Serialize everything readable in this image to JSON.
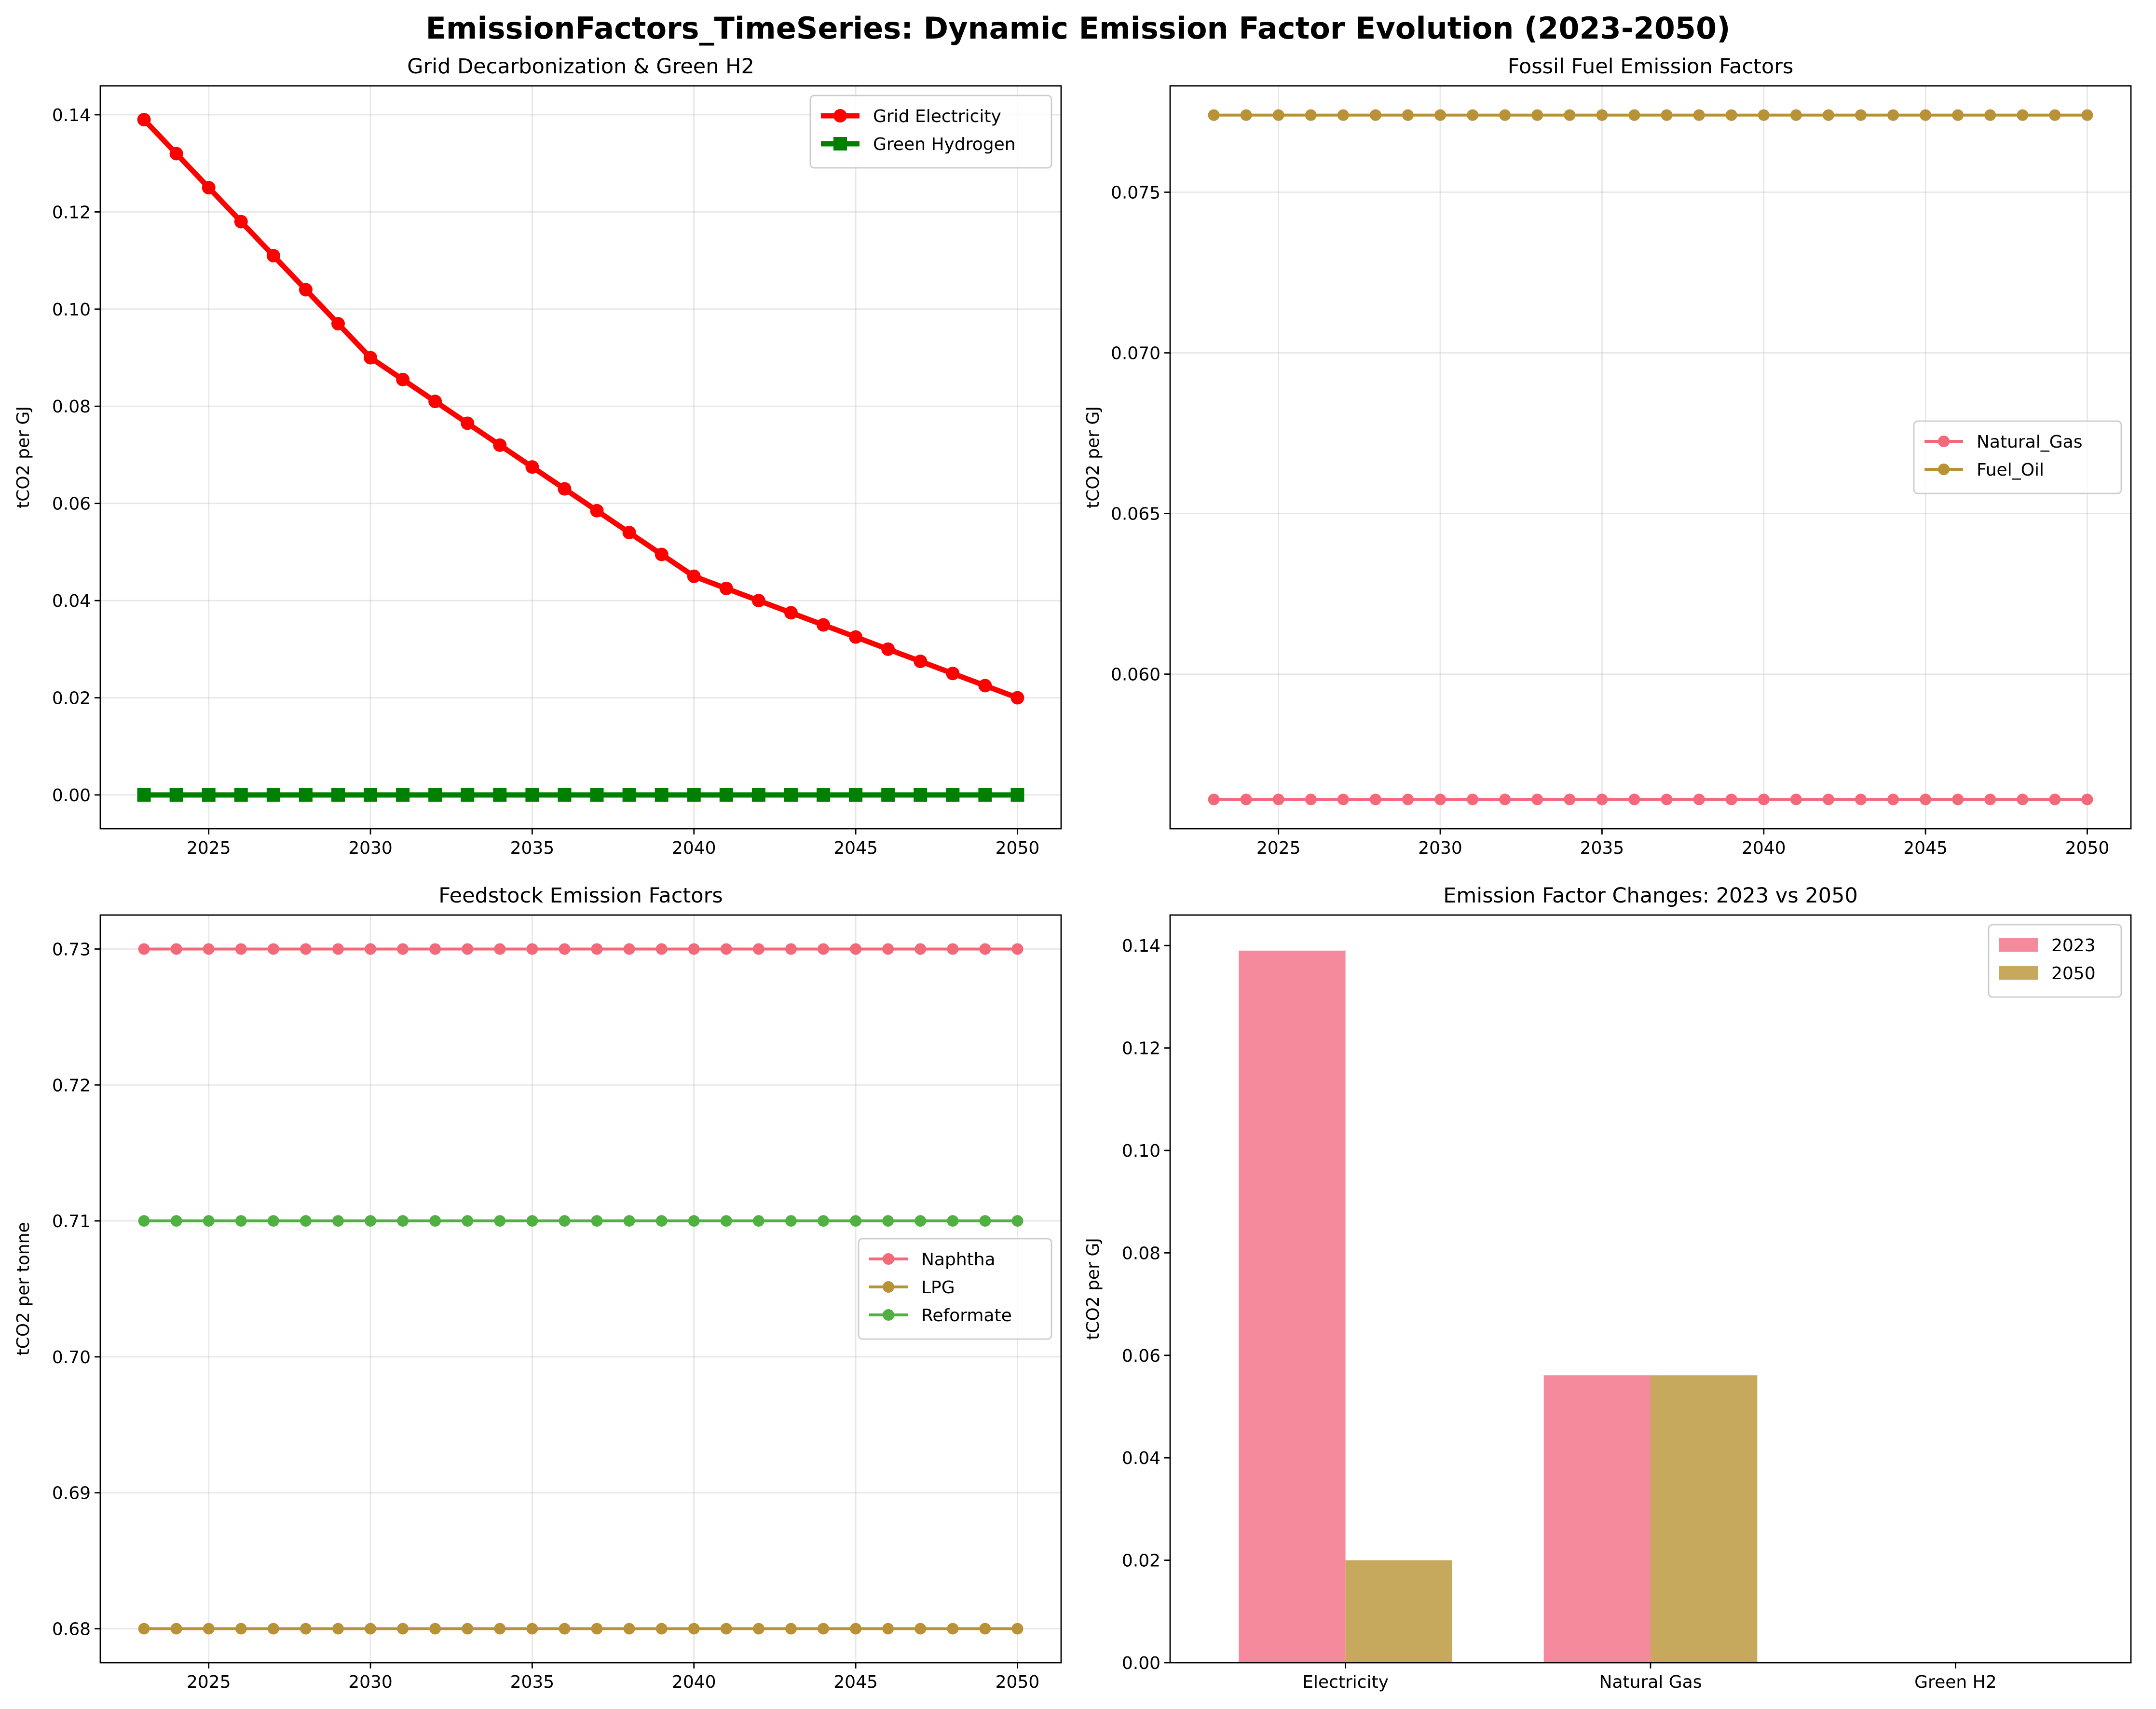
{
  "figure": {
    "title": "EmissionFactors_TimeSeries: Dynamic Emission Factor Evolution (2023-2050)"
  },
  "chart_data": [
    {
      "type": "line",
      "title": "Grid Decarbonization & Green H2",
      "xlabel": "",
      "ylabel": "tCO2 per GJ",
      "x": [
        2023,
        2024,
        2025,
        2026,
        2027,
        2028,
        2029,
        2030,
        2031,
        2032,
        2033,
        2034,
        2035,
        2036,
        2037,
        2038,
        2039,
        2040,
        2041,
        2042,
        2043,
        2044,
        2045,
        2046,
        2047,
        2048,
        2049,
        2050
      ],
      "xlim": [
        2021.65,
        2051.35
      ],
      "ylim": [
        -0.00695,
        0.14595
      ],
      "xticks": [
        2025,
        2030,
        2035,
        2040,
        2045,
        2050
      ],
      "yticks": [
        0.0,
        0.02,
        0.04,
        0.06,
        0.08,
        0.1,
        0.12,
        0.14
      ],
      "ytick_decimals": 2,
      "grid": true,
      "legend": "top-right",
      "series": [
        {
          "name": "Grid Electricity",
          "color": "#ff0000",
          "marker": "circle",
          "linewidth": "thick",
          "values": [
            0.139,
            0.132,
            0.125,
            0.118,
            0.111,
            0.104,
            0.097,
            0.09,
            0.0855,
            0.081,
            0.0765,
            0.072,
            0.0675,
            0.063,
            0.0585,
            0.054,
            0.0495,
            0.045,
            0.0425,
            0.04,
            0.0375,
            0.035,
            0.0325,
            0.03,
            0.0275,
            0.025,
            0.0225,
            0.02
          ]
        },
        {
          "name": "Green Hydrogen",
          "color": "#008000",
          "marker": "square",
          "linewidth": "thick",
          "values": [
            0,
            0,
            0,
            0,
            0,
            0,
            0,
            0,
            0,
            0,
            0,
            0,
            0,
            0,
            0,
            0,
            0,
            0,
            0,
            0,
            0,
            0,
            0,
            0,
            0,
            0,
            0,
            0
          ]
        }
      ]
    },
    {
      "type": "line",
      "title": "Fossil Fuel Emission Factors",
      "xlabel": "",
      "ylabel": "tCO2 per GJ",
      "x": [
        2023,
        2024,
        2025,
        2026,
        2027,
        2028,
        2029,
        2030,
        2031,
        2032,
        2033,
        2034,
        2035,
        2036,
        2037,
        2038,
        2039,
        2040,
        2041,
        2042,
        2043,
        2044,
        2045,
        2046,
        2047,
        2048,
        2049,
        2050
      ],
      "xlim": [
        2021.65,
        2051.35
      ],
      "ylim": [
        0.05519,
        0.07831
      ],
      "xticks": [
        2025,
        2030,
        2035,
        2040,
        2045,
        2050
      ],
      "yticks": [
        0.06,
        0.065,
        0.07,
        0.075
      ],
      "ytick_decimals": 3,
      "grid": true,
      "legend": "center-right",
      "series": [
        {
          "name": "Natural_Gas",
          "color": "#f2697a",
          "marker": "circle",
          "linewidth": "normal",
          "values": [
            0.0561,
            0.0561,
            0.0561,
            0.0561,
            0.0561,
            0.0561,
            0.0561,
            0.0561,
            0.0561,
            0.0561,
            0.0561,
            0.0561,
            0.0561,
            0.0561,
            0.0561,
            0.0561,
            0.0561,
            0.0561,
            0.0561,
            0.0561,
            0.0561,
            0.0561,
            0.0561,
            0.0561,
            0.0561,
            0.0561,
            0.0561,
            0.0561
          ]
        },
        {
          "name": "Fuel_Oil",
          "color": "#b99237",
          "marker": "circle",
          "linewidth": "normal",
          "values": [
            0.0774,
            0.0774,
            0.0774,
            0.0774,
            0.0774,
            0.0774,
            0.0774,
            0.0774,
            0.0774,
            0.0774,
            0.0774,
            0.0774,
            0.0774,
            0.0774,
            0.0774,
            0.0774,
            0.0774,
            0.0774,
            0.0774,
            0.0774,
            0.0774,
            0.0774,
            0.0774,
            0.0774,
            0.0774,
            0.0774,
            0.0774,
            0.0774
          ]
        }
      ]
    },
    {
      "type": "line",
      "title": "Feedstock Emission Factors",
      "xlabel": "",
      "ylabel": "tCO2 per tonne",
      "x": [
        2023,
        2024,
        2025,
        2026,
        2027,
        2028,
        2029,
        2030,
        2031,
        2032,
        2033,
        2034,
        2035,
        2036,
        2037,
        2038,
        2039,
        2040,
        2041,
        2042,
        2043,
        2044,
        2045,
        2046,
        2047,
        2048,
        2049,
        2050
      ],
      "xlim": [
        2021.65,
        2051.35
      ],
      "ylim": [
        0.6775,
        0.7325
      ],
      "xticks": [
        2025,
        2030,
        2035,
        2040,
        2045,
        2050
      ],
      "yticks": [
        0.68,
        0.69,
        0.7,
        0.71,
        0.72,
        0.73
      ],
      "ytick_decimals": 2,
      "grid": true,
      "legend": "center-right",
      "series": [
        {
          "name": "Naphtha",
          "color": "#f2697a",
          "marker": "circle",
          "linewidth": "normal",
          "values": [
            0.73,
            0.73,
            0.73,
            0.73,
            0.73,
            0.73,
            0.73,
            0.73,
            0.73,
            0.73,
            0.73,
            0.73,
            0.73,
            0.73,
            0.73,
            0.73,
            0.73,
            0.73,
            0.73,
            0.73,
            0.73,
            0.73,
            0.73,
            0.73,
            0.73,
            0.73,
            0.73,
            0.73
          ]
        },
        {
          "name": "LPG",
          "color": "#b99237",
          "marker": "circle",
          "linewidth": "normal",
          "values": [
            0.68,
            0.68,
            0.68,
            0.68,
            0.68,
            0.68,
            0.68,
            0.68,
            0.68,
            0.68,
            0.68,
            0.68,
            0.68,
            0.68,
            0.68,
            0.68,
            0.68,
            0.68,
            0.68,
            0.68,
            0.68,
            0.68,
            0.68,
            0.68,
            0.68,
            0.68,
            0.68,
            0.68
          ]
        },
        {
          "name": "Reformate",
          "color": "#50b041",
          "marker": "circle",
          "linewidth": "normal",
          "values": [
            0.71,
            0.71,
            0.71,
            0.71,
            0.71,
            0.71,
            0.71,
            0.71,
            0.71,
            0.71,
            0.71,
            0.71,
            0.71,
            0.71,
            0.71,
            0.71,
            0.71,
            0.71,
            0.71,
            0.71,
            0.71,
            0.71,
            0.71,
            0.71,
            0.71,
            0.71,
            0.71,
            0.71
          ]
        }
      ]
    },
    {
      "type": "bar",
      "title": "Emission Factor Changes: 2023 vs 2050",
      "xlabel": "",
      "ylabel": "tCO2 per GJ",
      "categories": [
        "Electricity",
        "Natural Gas",
        "Green H2"
      ],
      "xlim": [
        -0.575,
        2.575
      ],
      "ylim": [
        0,
        0.14595
      ],
      "yticks": [
        0.0,
        0.02,
        0.04,
        0.06,
        0.08,
        0.1,
        0.12,
        0.14
      ],
      "ytick_decimals": 2,
      "bar_width": 0.35,
      "grid": false,
      "legend": "top-right",
      "series": [
        {
          "name": "2023",
          "color": "#f58a9c",
          "values": [
            0.139,
            0.0561,
            0
          ]
        },
        {
          "name": "2050",
          "color": "#c6a95c",
          "values": [
            0.02,
            0.0561,
            0
          ]
        }
      ]
    }
  ]
}
